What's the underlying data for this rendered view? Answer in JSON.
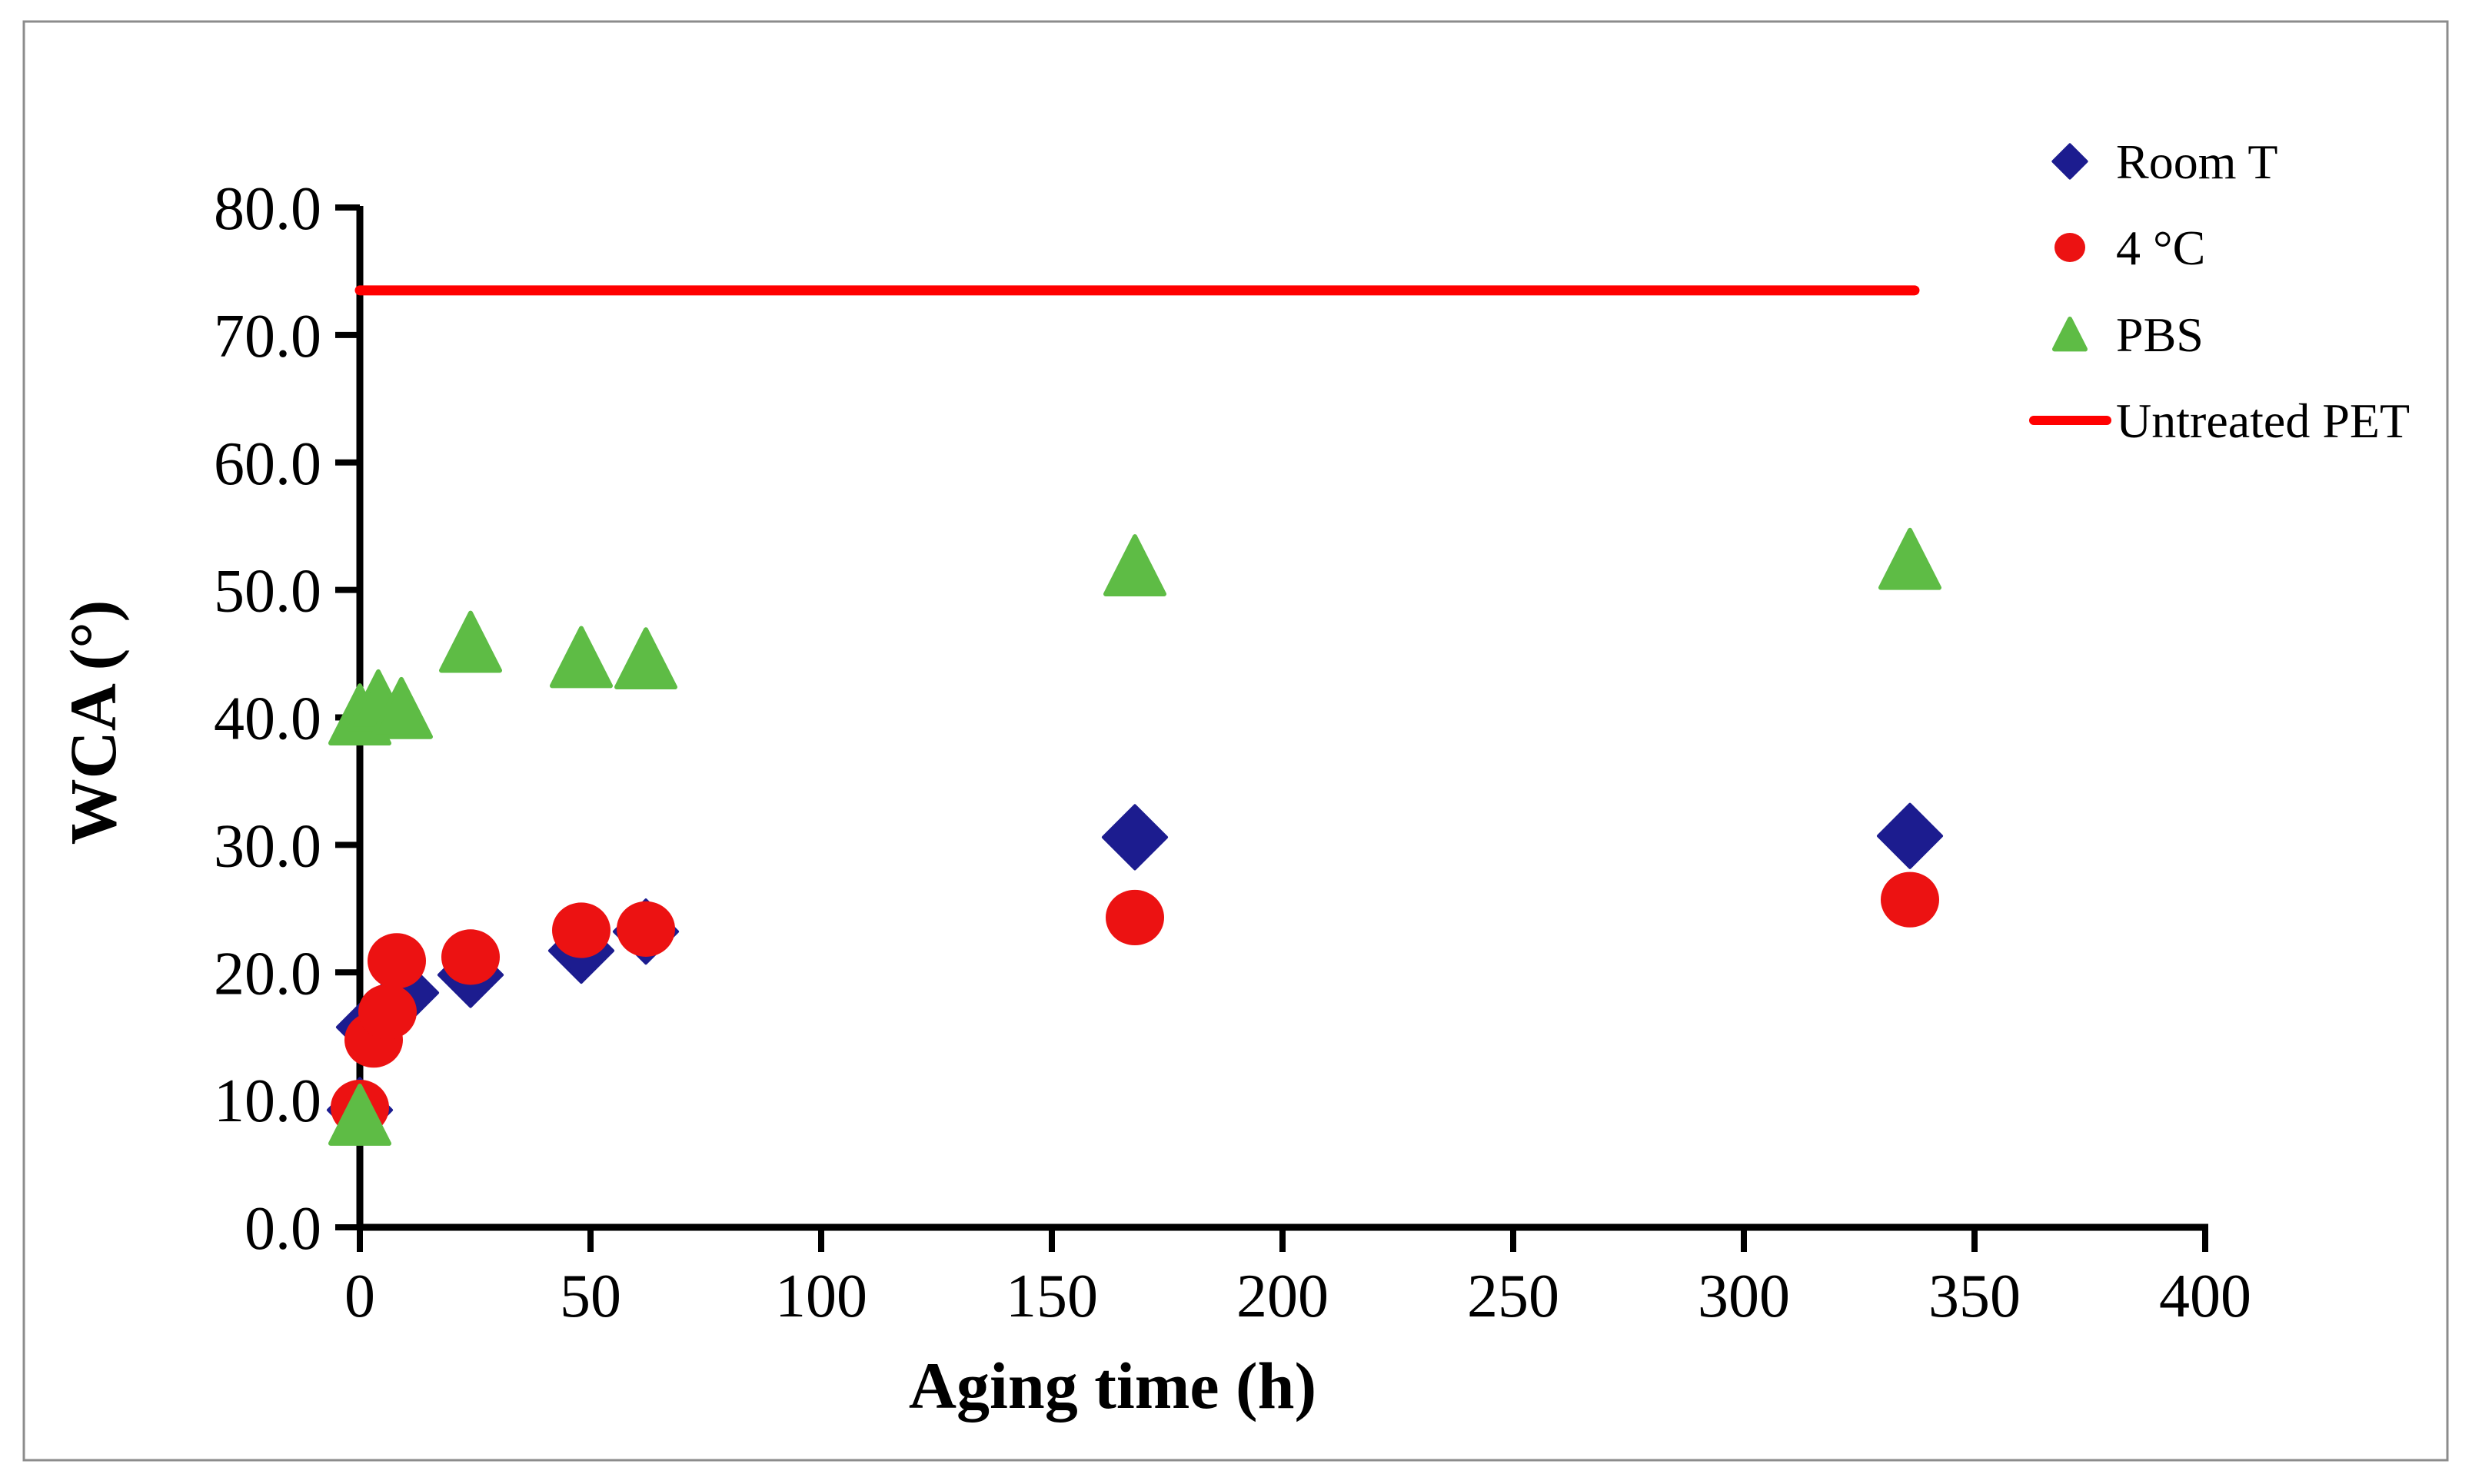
{
  "chart_data": {
    "type": "scatter",
    "title": "",
    "xlabel": "Aging time (h)",
    "ylabel": "WCA (°)",
    "xlim": [
      0,
      400
    ],
    "ylim": [
      0,
      80
    ],
    "x_ticks": [
      "0",
      "50",
      "100",
      "150",
      "200",
      "250",
      "300",
      "350",
      "400"
    ],
    "y_ticks": [
      "0.0",
      "10.0",
      "20.0",
      "30.0",
      "40.0",
      "50.0",
      "60.0",
      "70.0",
      "80.0"
    ],
    "grid": false,
    "legend_position": "top-right",
    "series": [
      {
        "name": "Room T",
        "marker": "diamond",
        "color": "#1C1C8F",
        "points": [
          [
            0,
            9.2
          ],
          [
            2,
            15.7
          ],
          [
            10,
            18.4
          ],
          [
            24,
            19.8
          ],
          [
            48,
            21.7
          ],
          [
            62,
            23.2
          ],
          [
            168,
            30.6
          ],
          [
            336,
            30.7
          ]
        ]
      },
      {
        "name": "4 °C",
        "marker": "circle",
        "color": "#EC1212",
        "points": [
          [
            0,
            9.4
          ],
          [
            3,
            14.7
          ],
          [
            6,
            16.9
          ],
          [
            8,
            20.9
          ],
          [
            24,
            21.2
          ],
          [
            48,
            23.3
          ],
          [
            62,
            23.4
          ],
          [
            168,
            24.3
          ],
          [
            336,
            25.7
          ]
        ]
      },
      {
        "name": "PBS",
        "marker": "triangle",
        "color": "#5EBC45",
        "points": [
          [
            0,
            8.8
          ],
          [
            0,
            40.2
          ],
          [
            4,
            41.3
          ],
          [
            9,
            40.7
          ],
          [
            24,
            45.9
          ],
          [
            48,
            44.7
          ],
          [
            62,
            44.6
          ],
          [
            168,
            51.9
          ],
          [
            336,
            52.4
          ]
        ]
      },
      {
        "name": "Untreated PET",
        "marker": "line",
        "color": "#FF0000",
        "line_y": 73.5,
        "line_x": [
          0,
          337
        ]
      }
    ]
  }
}
